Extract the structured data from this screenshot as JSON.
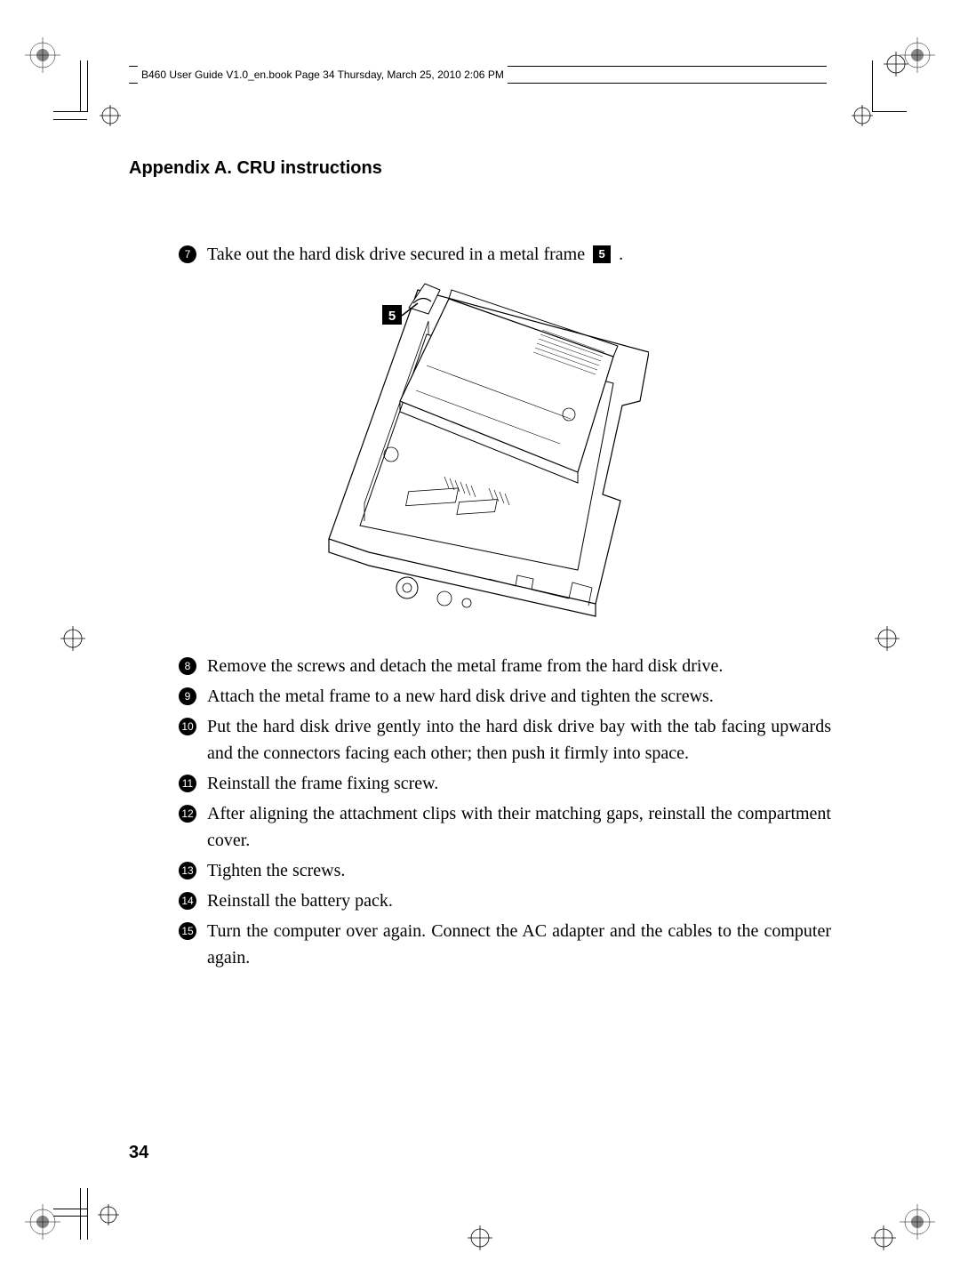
{
  "header": "B460 User Guide V1.0_en.book  Page 34  Thursday, March 25, 2010  2:06 PM",
  "section_title": "Appendix A. CRU instructions",
  "step7_pre": "Take out the hard disk drive secured in a metal frame ",
  "step7_post": " .",
  "step7_num": "7",
  "ref5": "5",
  "callout5": "5",
  "steps": [
    {
      "n": "8",
      "t": "Remove the screws and detach the metal frame from the hard disk drive."
    },
    {
      "n": "9",
      "t": "Attach the metal frame to a new hard disk drive and tighten the screws."
    },
    {
      "n": "10",
      "t": "Put the hard disk drive gently into the hard disk drive bay with the tab facing upwards and the connectors facing each other; then push it firmly into space."
    },
    {
      "n": "11",
      "t": "Reinstall the frame fixing screw."
    },
    {
      "n": "12",
      "t": "After aligning the attachment clips with their matching gaps, reinstall the compartment cover."
    },
    {
      "n": "13",
      "t": "Tighten the screws."
    },
    {
      "n": "14",
      "t": "Reinstall the battery pack."
    },
    {
      "n": "15",
      "t": "Turn the computer over again. Connect the AC adapter and the cables to the computer again."
    }
  ],
  "page_num": "34"
}
